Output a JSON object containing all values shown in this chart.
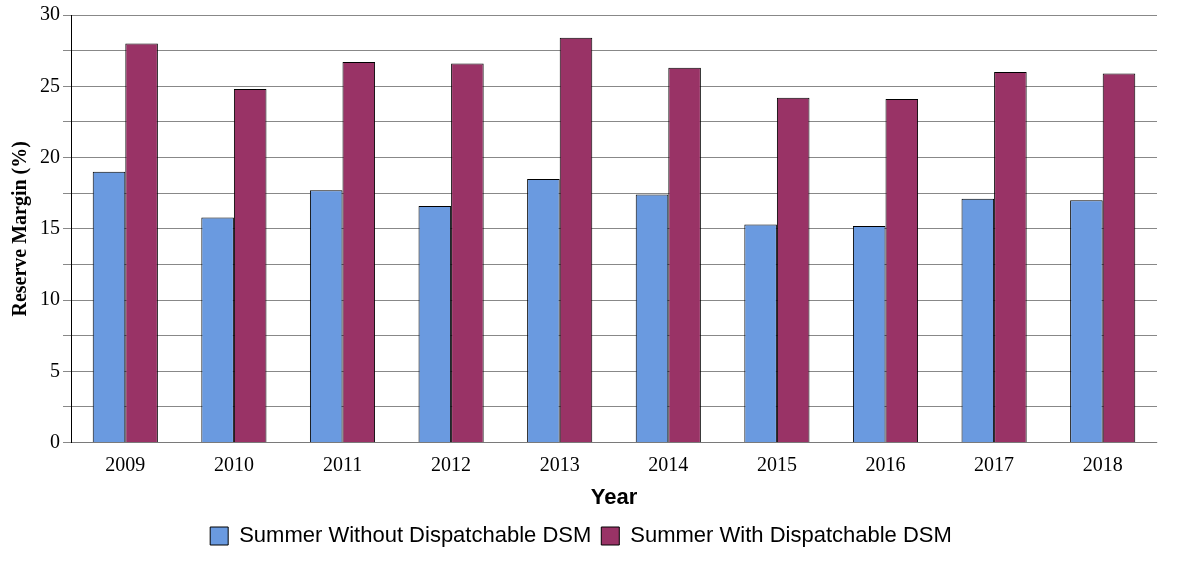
{
  "chart_data": {
    "type": "bar",
    "xlabel": "Year",
    "ylabel": "Reserve Margin (%)",
    "categories": [
      "2009",
      "2010",
      "2011",
      "2012",
      "2013",
      "2014",
      "2015",
      "2016",
      "2017",
      "2018"
    ],
    "series": [
      {
        "name": "Summer Without Dispatchable DSM",
        "color": "#6a9ae0",
        "values": [
          19,
          15.8,
          17.7,
          16.6,
          18.5,
          17.4,
          15.3,
          15.2,
          17.1,
          17
        ]
      },
      {
        "name": "Summer With Dispatchable DSM",
        "color": "#993366",
        "values": [
          28,
          24.8,
          26.7,
          26.6,
          28.4,
          26.3,
          24.2,
          24.1,
          26,
          25.9
        ]
      }
    ],
    "ylim": [
      0,
      30
    ],
    "yticks": [
      0,
      {
        "value": 2.5,
        "label": null
      },
      5,
      {
        "value": 7.5,
        "label": null
      },
      10,
      {
        "value": 12.5,
        "label": null
      },
      15,
      {
        "value": 17.5,
        "label": null
      },
      20,
      {
        "value": 22.5,
        "label": null
      },
      25,
      {
        "value": 27.5,
        "label": null
      },
      30
    ],
    "grid": "y",
    "legend": "bottom"
  }
}
